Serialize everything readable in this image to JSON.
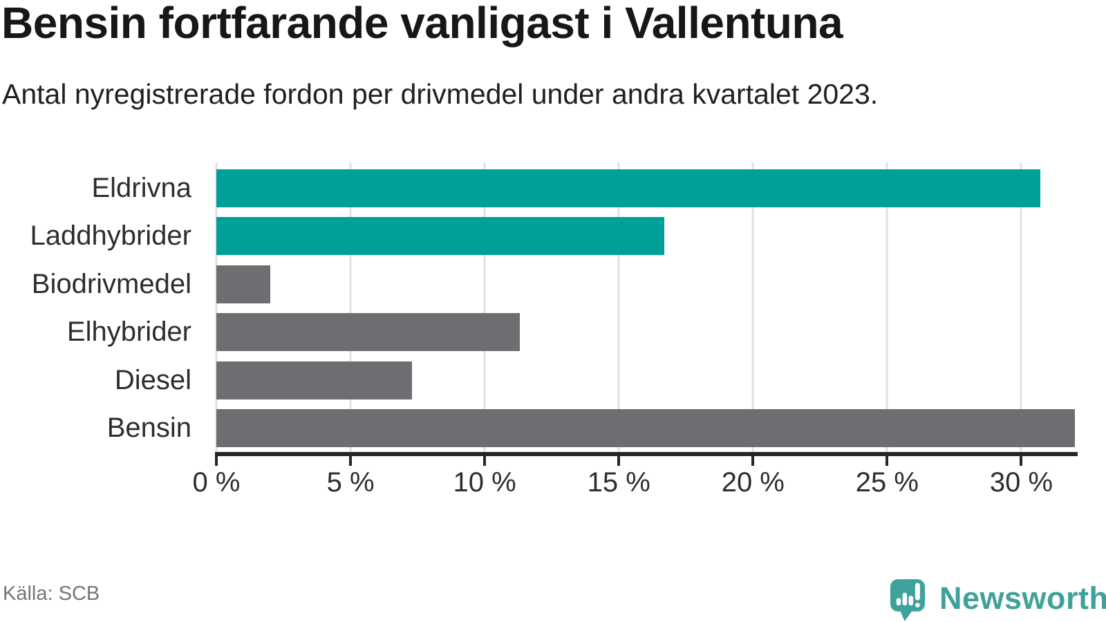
{
  "title": "Bensin fortfarande vanligast i Vallentuna",
  "subtitle": "Antal nyregistrerade fordon per drivmedel under andra kvartalet 2023.",
  "source": "Källa: SCB",
  "brand": {
    "name": "Newsworthy",
    "icon": "newsworthy-speech-bubble-barchart-icon",
    "color": "#3fa29a"
  },
  "colors": {
    "highlight_teal": "#00a099",
    "default_gray": "#6d6d72",
    "axis": "#262626",
    "grid": "#e0e0e0",
    "text_dark": "#2d2d2d",
    "muted": "#75757b"
  },
  "chart_data": {
    "type": "bar",
    "orientation": "horizontal",
    "title": "Bensin fortfarande vanligast i Vallentuna",
    "subtitle": "Antal nyregistrerade fordon per drivmedel under andra kvartalet 2023.",
    "categories": [
      "Eldrivna",
      "Laddhybrider",
      "Biodrivmedel",
      "Elhybrider",
      "Diesel",
      "Bensin"
    ],
    "values": [
      30.7,
      16.7,
      2.0,
      11.3,
      7.3,
      32.0
    ],
    "bar_colors": [
      "#00a099",
      "#00a099",
      "#6d6d72",
      "#6d6d72",
      "#6d6d72",
      "#6d6d72"
    ],
    "unit": "%",
    "xlabel": "",
    "ylabel": "",
    "xlim": [
      0,
      32.05
    ],
    "xticks": [
      0,
      5,
      10,
      15,
      20,
      25,
      30
    ],
    "xtick_labels": [
      "0 %",
      "5 %",
      "10 %",
      "15 %",
      "20 %",
      "25 %",
      "30 %"
    ],
    "grid": true,
    "legend": false
  }
}
